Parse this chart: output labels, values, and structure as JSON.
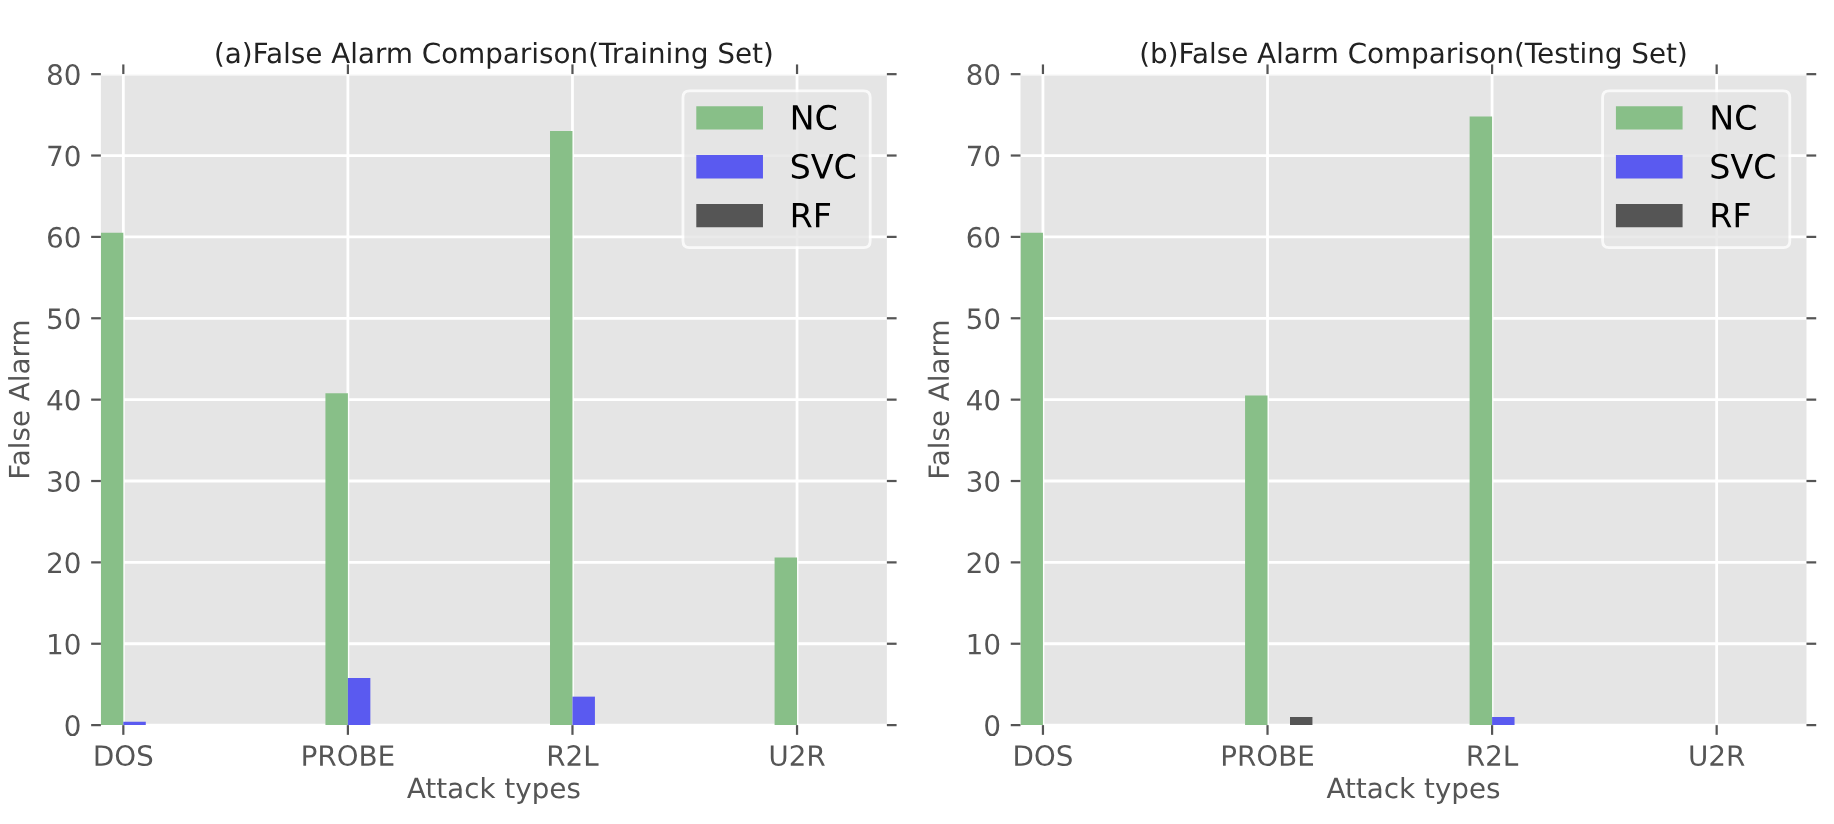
{
  "chart_data": [
    {
      "type": "bar",
      "title": "(a)False Alarm Comparison(Training Set)",
      "xlabel": "Attack types",
      "ylabel": "False Alarm",
      "categories": [
        "DOS",
        "PROBE",
        "R2L",
        "U2R"
      ],
      "series": [
        {
          "name": "NC",
          "color": "#88bf88",
          "values": [
            60.5,
            40.8,
            73,
            20.6
          ]
        },
        {
          "name": "SVC",
          "color": "#5a5af0",
          "values": [
            0.4,
            5.8,
            3.5,
            0
          ]
        },
        {
          "name": "RF",
          "color": "#555555",
          "values": [
            0,
            0,
            0,
            0
          ]
        }
      ],
      "ylim": [
        0,
        80
      ],
      "yticks": [
        0,
        10,
        20,
        30,
        40,
        50,
        60,
        70,
        80
      ],
      "grid": true,
      "legend": "top right"
    },
    {
      "type": "bar",
      "title": "(b)False Alarm Comparison(Testing Set)",
      "xlabel": "Attack types",
      "ylabel": "False Alarm",
      "categories": [
        "DOS",
        "PROBE",
        "R2L",
        "U2R"
      ],
      "series": [
        {
          "name": "NC",
          "color": "#88bf88",
          "values": [
            60.5,
            40.5,
            74.8,
            0
          ]
        },
        {
          "name": "SVC",
          "color": "#5a5af0",
          "values": [
            0,
            0,
            1,
            0
          ]
        },
        {
          "name": "RF",
          "color": "#555555",
          "values": [
            0,
            1,
            0,
            0
          ]
        }
      ],
      "ylim": [
        0,
        80
      ],
      "yticks": [
        0,
        10,
        20,
        30,
        40,
        50,
        60,
        70,
        80
      ],
      "grid": true,
      "legend": "top right"
    }
  ]
}
